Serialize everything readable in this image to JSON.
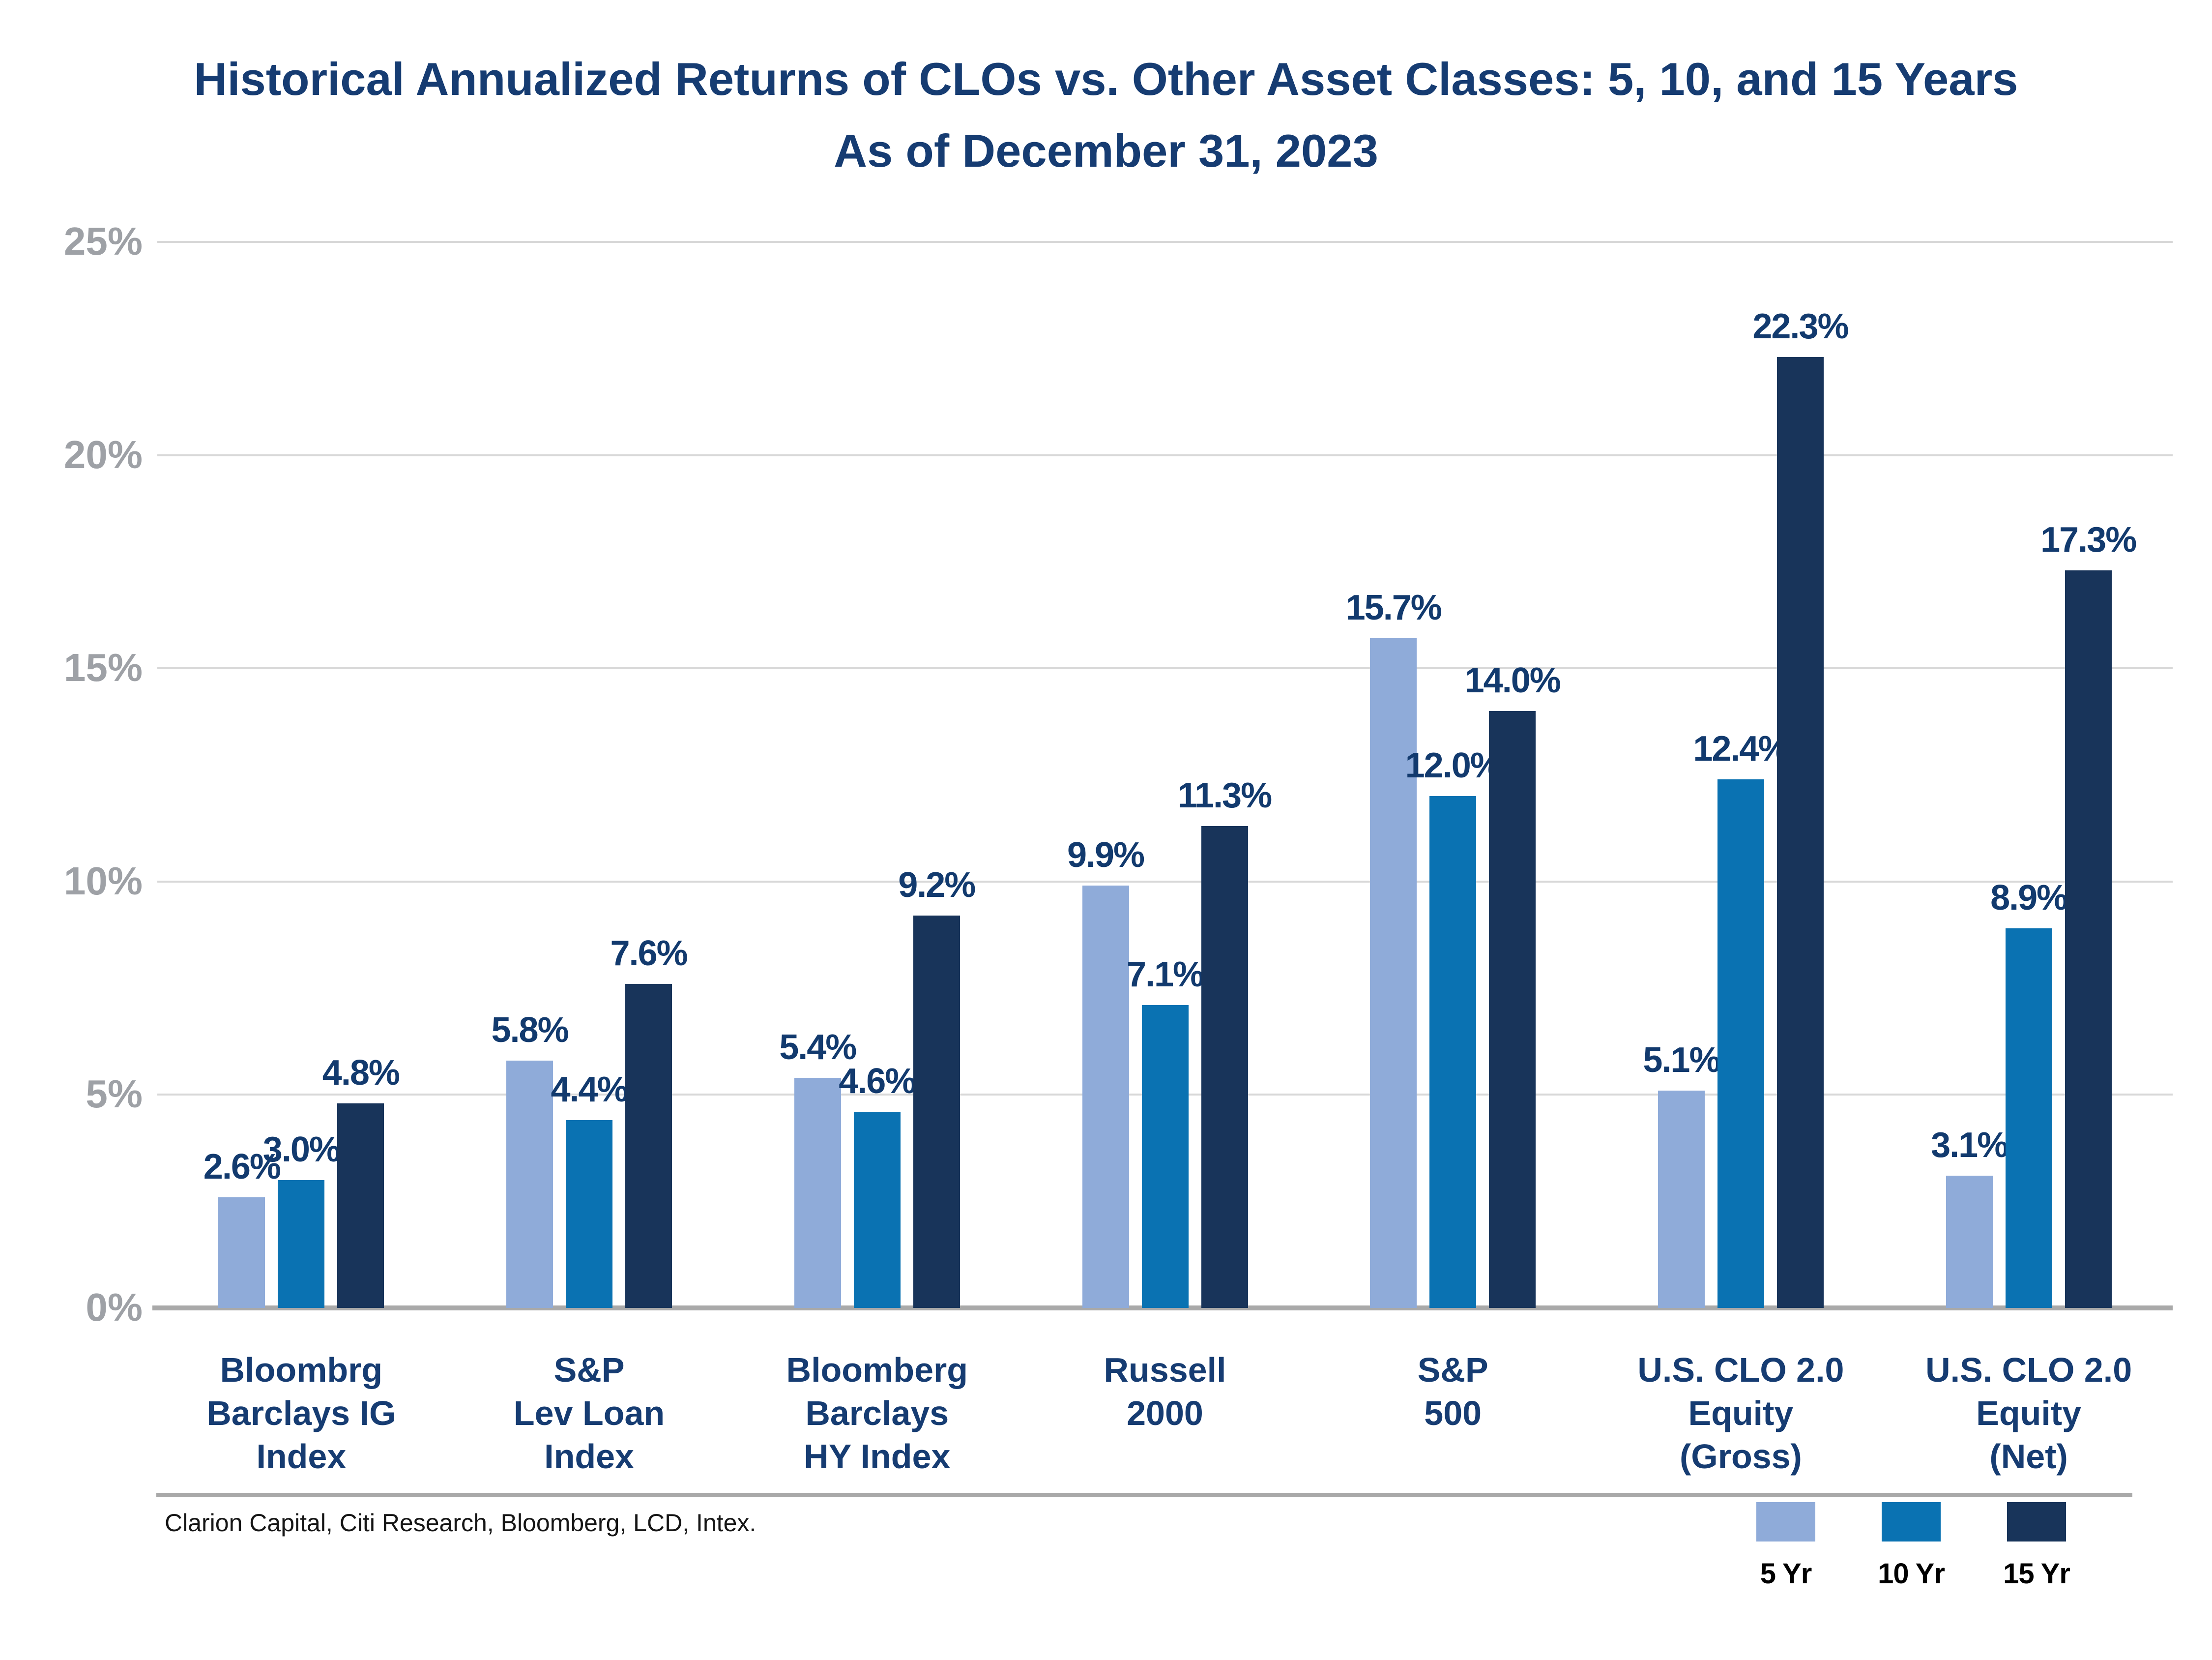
{
  "title": {
    "line1": "Historical Annualized Returns of CLOs vs. Other Asset Classes: 5, 10, and 15 Years",
    "line2": "As of December 31, 2023"
  },
  "y_axis": {
    "ticks": [
      "25%",
      "20%",
      "15%",
      "10%",
      "5%",
      "0%"
    ]
  },
  "chart_data": {
    "type": "bar",
    "categories": [
      "Bloombrg\nBarclays IG\nIndex",
      "S&P\nLev Loan\nIndex",
      "Bloomberg\nBarclays\nHY Index",
      "Russell\n2000",
      "S&P\n500",
      "U.S. CLO 2.0\nEquity\n(Gross)",
      "U.S. CLO 2.0\nEquity\n(Net)"
    ],
    "series": [
      {
        "name": "5 Yr",
        "color": "#8FABD9",
        "values": [
          2.6,
          5.8,
          5.4,
          9.9,
          15.7,
          5.1,
          3.1
        ]
      },
      {
        "name": "10 Yr",
        "color": "#0A72B2",
        "values": [
          3.0,
          4.4,
          4.6,
          7.1,
          12.0,
          12.4,
          8.9
        ]
      },
      {
        "name": "15 Yr",
        "color": "#18345A",
        "values": [
          4.8,
          7.6,
          9.2,
          11.3,
          14.0,
          22.3,
          17.3
        ]
      }
    ],
    "value_label_format": "one-decimal-percent",
    "ylim": [
      0,
      25
    ],
    "grid": "horizontal",
    "legend_position": "bottom-right",
    "title": "Historical Annualized Returns of CLOs vs. Other Asset Classes: 5, 10, and 15 Years",
    "subtitle": "As of December 31, 2023"
  },
  "source": "Clarion Capital, Citi Research, Bloomberg, LCD, Intex.",
  "colors": {
    "title_text": "#163C72",
    "value_label_text": "#123A6E",
    "category_text": "#163C72",
    "y_tick_text": "#9EA1A6",
    "gridline": "#D8D8D8",
    "axis_line": "#A9A9A9",
    "series_5yr": "#8FABD9",
    "series_10yr": "#0A72B2",
    "series_15yr": "#18345A",
    "background": "#FFFFFF"
  }
}
